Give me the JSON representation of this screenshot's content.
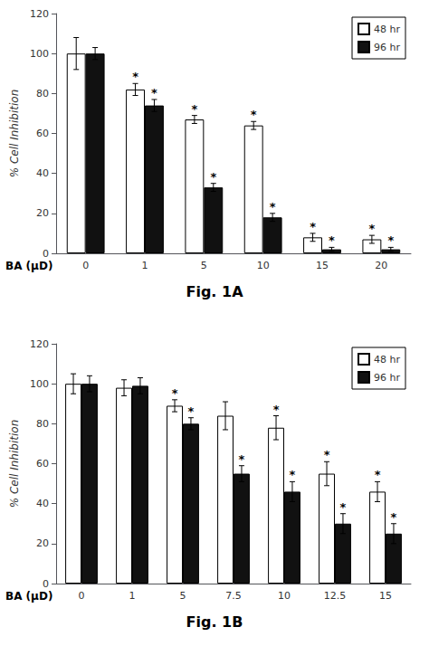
{
  "chart_data": [
    {
      "type": "bar",
      "caption": "Fig. 1A",
      "xlabel": "BA (μD)",
      "ylabel": "% Cell Inhibition",
      "categories": [
        "0",
        "1",
        "5",
        "10",
        "15",
        "20"
      ],
      "series": [
        {
          "name": "48 hr",
          "color": "#ffffff",
          "values": [
            100,
            82,
            67,
            64,
            8,
            7
          ],
          "errors": [
            8,
            3,
            2,
            2,
            2,
            2
          ],
          "annotated": [
            false,
            true,
            true,
            true,
            true,
            true
          ]
        },
        {
          "name": "96 hr",
          "color": "#111111",
          "values": [
            100,
            74,
            33,
            18,
            2,
            2
          ],
          "errors": [
            3,
            3,
            2,
            2,
            1,
            1
          ],
          "annotated": [
            false,
            true,
            true,
            true,
            true,
            true
          ]
        }
      ],
      "annotation": "*",
      "ylim": [
        0,
        120
      ],
      "yticks": [
        0,
        20,
        40,
        60,
        80,
        100,
        120
      ],
      "grid": false,
      "legend": "upper right"
    },
    {
      "type": "bar",
      "caption": "Fig. 1B",
      "xlabel": "BA (μD)",
      "ylabel": "% Cell Inhibition",
      "categories": [
        "0",
        "1",
        "5",
        "7.5",
        "10",
        "12.5",
        "15"
      ],
      "series": [
        {
          "name": "48 hr",
          "color": "#ffffff",
          "values": [
            100,
            98,
            89,
            84,
            78,
            55,
            46
          ],
          "errors": [
            5,
            4,
            3,
            7,
            6,
            6,
            5
          ],
          "annotated": [
            false,
            false,
            true,
            false,
            true,
            true,
            true
          ]
        },
        {
          "name": "96 hr",
          "color": "#111111",
          "values": [
            100,
            99,
            80,
            55,
            46,
            30,
            25
          ],
          "errors": [
            4,
            4,
            3,
            4,
            5,
            5,
            5
          ],
          "annotated": [
            false,
            false,
            true,
            true,
            true,
            true,
            true
          ]
        }
      ],
      "annotation": "*",
      "ylim": [
        0,
        120
      ],
      "yticks": [
        0,
        20,
        40,
        60,
        80,
        100,
        120
      ],
      "grid": false,
      "legend": "upper right"
    }
  ]
}
